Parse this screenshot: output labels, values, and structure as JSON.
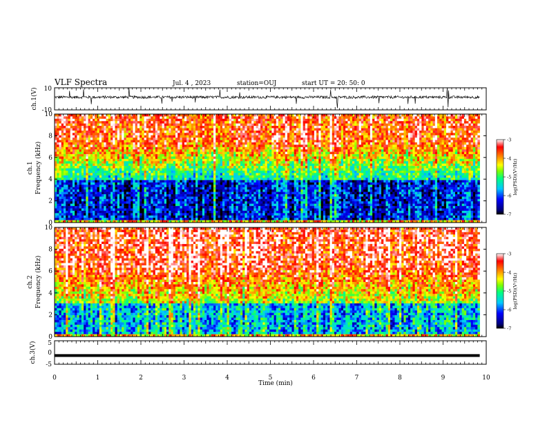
{
  "header": {
    "title": "VLF Spectra",
    "date": "Jul. 4 , 2023",
    "station": "station=OUJ",
    "start_ut": "start UT = 20: 50: 0"
  },
  "chart_data": [
    {
      "type": "line",
      "panel": "ch.1 waveform",
      "ylabel": "ch.1(V)",
      "ylim": [
        -10,
        10
      ],
      "yticks": [
        "10",
        "-10"
      ],
      "xlim": [
        0,
        10
      ],
      "description_values": {
        "baseline_v": 1.5,
        "noise_amplitude_v": 1.2
      }
    },
    {
      "type": "heatmap",
      "panel": "ch.1 spectrogram",
      "ylabel_line1": "ch.1",
      "ylabel_line2": "Frequency (kHz)",
      "ylim": [
        0,
        10
      ],
      "yticks": [
        "0",
        "2",
        "4",
        "6",
        "8",
        "10"
      ],
      "xlim": [
        0,
        9.85
      ],
      "colorbar": {
        "label": "log(PSD)(V²/Hz)",
        "range": [
          -7,
          -3
        ],
        "ticks": [
          "-3",
          "-4",
          "-5",
          "-6",
          "-7"
        ]
      },
      "pattern": {
        "low_band_kHz": [
          0.3,
          4.0
        ],
        "low_band_level": -6.3,
        "high_band_level": -3.6
      }
    },
    {
      "type": "heatmap",
      "panel": "ch.2 spectrogram",
      "ylabel_line1": "ch.2",
      "ylabel_line2": "Frequency (kHz)",
      "ylim": [
        0,
        10
      ],
      "yticks": [
        "0",
        "2",
        "4",
        "6",
        "8",
        "10"
      ],
      "xlim": [
        0,
        9.85
      ],
      "colorbar": {
        "label": "log(PSD)(V²/Hz)",
        "range": [
          -7,
          -3
        ],
        "ticks": [
          "-3",
          "-4",
          "-5",
          "-6",
          "-7"
        ]
      },
      "pattern": {
        "low_band_kHz": [
          0.3,
          3.0
        ],
        "low_band_level": -5.6,
        "high_band_level": -3.4
      }
    },
    {
      "type": "line",
      "panel": "ch.3 waveform",
      "ylabel": "ch.3(V)",
      "ylim": [
        -5,
        5
      ],
      "yticks": [
        "5",
        "0",
        "-5"
      ],
      "xlim": [
        0,
        10
      ],
      "xlabel": "Time (min)",
      "xticks": [
        "0",
        "1",
        "2",
        "3",
        "4",
        "5",
        "6",
        "7",
        "8",
        "9",
        "10"
      ],
      "description_values": {
        "constant_v": -1.3
      }
    }
  ]
}
